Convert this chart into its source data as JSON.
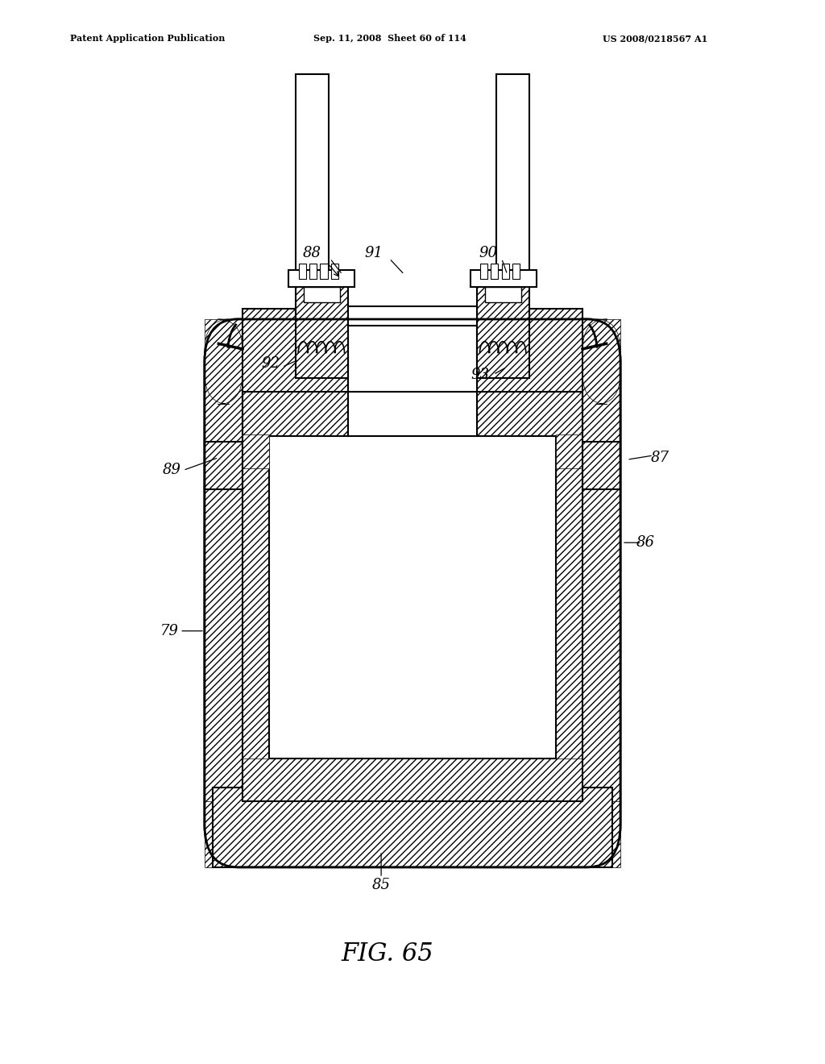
{
  "bg_color": "#ffffff",
  "line_color": "#000000",
  "header_left": "Patent Application Publication",
  "header_mid": "Sep. 11, 2008  Sheet 60 of 114",
  "header_right": "US 2008/0218567 A1",
  "figure_label": "FIG. 65"
}
